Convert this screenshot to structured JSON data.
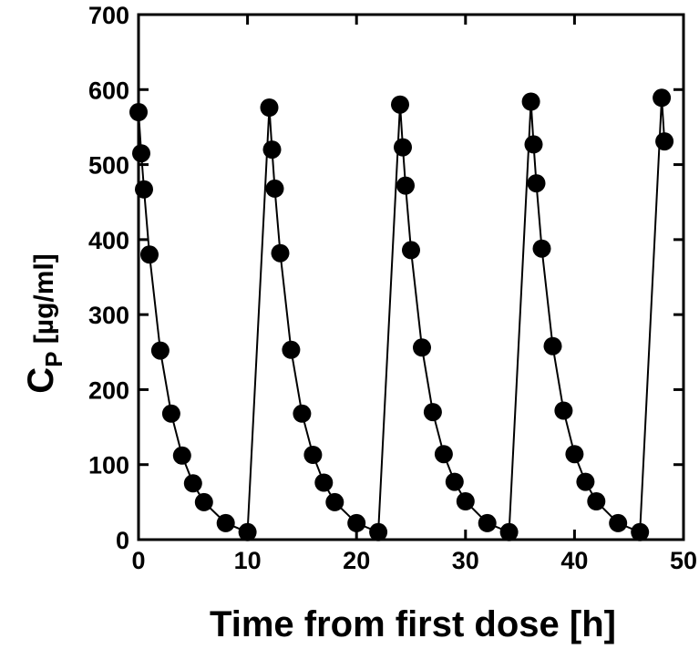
{
  "chart_data": {
    "type": "line",
    "title": "",
    "xlabel": "Time from first dose [h]",
    "ylabel_main": "C",
    "ylabel_sub": "P",
    "ylabel_rest": " [µg/ml]",
    "xlim": [
      0,
      50
    ],
    "ylim": [
      0,
      700
    ],
    "xticks": [
      0,
      10,
      20,
      30,
      40,
      50
    ],
    "yticks": [
      0,
      100,
      200,
      300,
      400,
      500,
      600,
      700
    ],
    "grid": false,
    "legend": "none",
    "marker": "circle",
    "line_color": "#000000",
    "marker_color": "#000000",
    "series": [
      {
        "x": [
          0,
          0.25,
          0.5,
          1,
          2,
          3,
          4,
          5,
          6,
          8,
          10,
          12,
          12.25,
          12.5,
          13,
          14,
          15,
          16,
          17,
          18,
          20,
          22,
          24,
          24.25,
          24.5,
          25,
          26,
          27,
          28,
          29,
          30,
          32,
          34,
          36,
          36.25,
          36.5,
          37,
          38,
          39,
          40,
          41,
          42,
          44,
          46,
          48,
          48.25
        ],
        "y": [
          570,
          515,
          467,
          380,
          252,
          168,
          112,
          75,
          50,
          22,
          10,
          576,
          520,
          468,
          382,
          253,
          168,
          113,
          76,
          50,
          22,
          10,
          580,
          523,
          472,
          386,
          256,
          170,
          114,
          77,
          51,
          22,
          10,
          584,
          527,
          475,
          388,
          258,
          172,
          114,
          77,
          51,
          22,
          10,
          589,
          531
        ]
      }
    ]
  }
}
